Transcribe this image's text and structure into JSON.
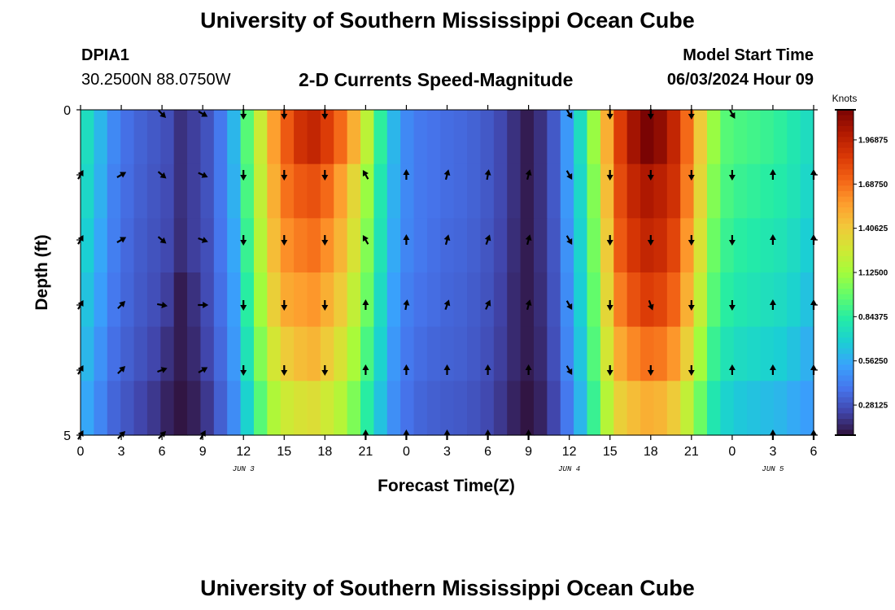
{
  "header": {
    "title": "University of Southern Mississippi Ocean Cube",
    "station": "DPIA1",
    "coords": "30.2500N  88.0750W",
    "subtitle": "2-D Currents Speed-Magnitude",
    "model_start_label": "Model Start Time",
    "model_start_value": "06/03/2024 Hour 09"
  },
  "footer": {
    "title": "University of Southern Mississippi Ocean Cube"
  },
  "colors": {
    "colormap": [
      "#30123b",
      "#4145ab",
      "#4675ed",
      "#39a2fc",
      "#1bcfd4",
      "#24eca6",
      "#61fc6c",
      "#a4fc3b",
      "#d1e834",
      "#f3c63a",
      "#fe9b2d",
      "#f36315",
      "#d93806",
      "#b11901",
      "#7a0403"
    ]
  },
  "chart_data": {
    "type": "heatmap",
    "title": "2-D Currents Speed-Magnitude",
    "xlabel": "Forecast Time(Z)",
    "ylabel": "Depth (ft)",
    "x_hours": [
      0,
      3,
      6,
      9,
      12,
      15,
      18,
      21,
      24,
      27,
      30,
      33,
      36,
      39,
      42,
      45,
      48,
      51,
      54
    ],
    "x_tick_labels": [
      "0",
      "3",
      "6",
      "9",
      "12",
      "15",
      "18",
      "21",
      "0",
      "3",
      "6",
      "9",
      "12",
      "15",
      "18",
      "21",
      "0",
      "3",
      "6"
    ],
    "date_labels": [
      {
        "hour": 12,
        "label": "JUN 3"
      },
      {
        "hour": 36,
        "label": "JUN 4"
      },
      {
        "hour": 51,
        "label": "JUN 5"
      }
    ],
    "y_range": [
      0,
      5
    ],
    "y_tick_labels": [
      "0",
      "5"
    ],
    "depth_levels": [
      0,
      1,
      2,
      3,
      4,
      5
    ],
    "colorbar": {
      "title": "Knots",
      "ticks": [
        0.28125,
        0.5625,
        0.84375,
        1.125,
        1.40625,
        1.6875,
        1.96875
      ],
      "tick_labels": [
        "0.28125",
        "0.56250",
        "0.84375",
        "1.12500",
        "1.40625",
        "1.68750",
        "1.96875"
      ],
      "range": [
        0.09,
        2.16
      ]
    },
    "speed_knots": [
      [
        0.75,
        0.6,
        0.45,
        0.37,
        0.33,
        0.3,
        0.27,
        0.18,
        0.22,
        0.28,
        0.4,
        0.6,
        0.95,
        1.25,
        1.55,
        1.75,
        1.9,
        1.95,
        1.85,
        1.7,
        1.5,
        1.2,
        0.85,
        0.6,
        0.45,
        0.4,
        0.38,
        0.36,
        0.35,
        0.33,
        0.3,
        0.25,
        0.18,
        0.12,
        0.18,
        0.3,
        0.5,
        0.75,
        1.1,
        1.5,
        1.85,
        2.05,
        2.16,
        2.1,
        1.95,
        1.7,
        1.4,
        1.1,
        0.95,
        0.92,
        0.9,
        0.88,
        0.85,
        0.8,
        0.75
      ],
      [
        0.72,
        0.58,
        0.43,
        0.36,
        0.32,
        0.29,
        0.26,
        0.18,
        0.22,
        0.28,
        0.4,
        0.58,
        0.92,
        1.22,
        1.5,
        1.68,
        1.75,
        1.78,
        1.7,
        1.55,
        1.35,
        1.1,
        0.8,
        0.58,
        0.45,
        0.4,
        0.38,
        0.36,
        0.35,
        0.33,
        0.3,
        0.25,
        0.18,
        0.12,
        0.18,
        0.3,
        0.5,
        0.72,
        1.05,
        1.45,
        1.8,
        1.95,
        2.02,
        1.98,
        1.9,
        1.65,
        1.35,
        1.05,
        0.92,
        0.88,
        0.86,
        0.84,
        0.82,
        0.78,
        0.72
      ],
      [
        0.68,
        0.55,
        0.42,
        0.35,
        0.31,
        0.28,
        0.25,
        0.17,
        0.22,
        0.27,
        0.39,
        0.55,
        0.88,
        1.18,
        1.45,
        1.6,
        1.65,
        1.68,
        1.6,
        1.48,
        1.3,
        1.05,
        0.78,
        0.56,
        0.44,
        0.4,
        0.37,
        0.35,
        0.34,
        0.32,
        0.29,
        0.24,
        0.17,
        0.12,
        0.18,
        0.29,
        0.48,
        0.7,
        1.02,
        1.4,
        1.75,
        1.88,
        1.95,
        1.92,
        1.82,
        1.58,
        1.3,
        1.0,
        0.88,
        0.84,
        0.82,
        0.8,
        0.78,
        0.74,
        0.68
      ],
      [
        0.64,
        0.52,
        0.4,
        0.34,
        0.3,
        0.27,
        0.22,
        0.12,
        0.18,
        0.26,
        0.37,
        0.52,
        0.84,
        1.12,
        1.38,
        1.52,
        1.55,
        1.58,
        1.5,
        1.4,
        1.22,
        1.0,
        0.74,
        0.53,
        0.42,
        0.38,
        0.36,
        0.34,
        0.33,
        0.31,
        0.28,
        0.23,
        0.16,
        0.12,
        0.17,
        0.28,
        0.46,
        0.68,
        0.98,
        1.35,
        1.65,
        1.78,
        1.85,
        1.82,
        1.72,
        1.5,
        1.22,
        0.95,
        0.84,
        0.8,
        0.78,
        0.76,
        0.74,
        0.7,
        0.64
      ],
      [
        0.6,
        0.48,
        0.37,
        0.32,
        0.28,
        0.24,
        0.18,
        0.12,
        0.16,
        0.24,
        0.35,
        0.5,
        0.78,
        1.05,
        1.28,
        1.4,
        1.45,
        1.48,
        1.4,
        1.3,
        1.14,
        0.92,
        0.7,
        0.5,
        0.4,
        0.36,
        0.34,
        0.33,
        0.32,
        0.3,
        0.27,
        0.22,
        0.16,
        0.12,
        0.16,
        0.27,
        0.44,
        0.65,
        0.94,
        1.28,
        1.52,
        1.62,
        1.68,
        1.66,
        1.58,
        1.38,
        1.12,
        0.88,
        0.78,
        0.74,
        0.72,
        0.7,
        0.68,
        0.64,
        0.58
      ],
      [
        0.55,
        0.44,
        0.34,
        0.29,
        0.24,
        0.2,
        0.14,
        0.1,
        0.13,
        0.2,
        0.32,
        0.46,
        0.7,
        0.95,
        1.16,
        1.26,
        1.3,
        1.32,
        1.26,
        1.18,
        1.04,
        0.84,
        0.64,
        0.47,
        0.38,
        0.34,
        0.32,
        0.31,
        0.3,
        0.28,
        0.25,
        0.2,
        0.14,
        0.1,
        0.14,
        0.24,
        0.4,
        0.6,
        0.88,
        1.18,
        1.38,
        1.45,
        1.5,
        1.48,
        1.4,
        1.22,
        1.0,
        0.8,
        0.7,
        0.66,
        0.64,
        0.62,
        0.6,
        0.56,
        0.52
      ]
    ],
    "vector_hours": [
      0,
      3,
      6,
      9,
      12,
      15,
      18,
      21,
      24,
      27,
      30,
      33,
      36,
      39,
      42,
      45,
      48,
      51,
      54
    ],
    "vector_depths": [
      0,
      1,
      2,
      3,
      4,
      5
    ],
    "vector_directions_deg": [
      [
        null,
        null,
        135,
        120,
        180,
        180,
        180,
        null,
        null,
        null,
        null,
        null,
        150,
        180,
        180,
        180,
        150,
        null,
        null
      ],
      [
        30,
        60,
        130,
        115,
        180,
        180,
        180,
        330,
        0,
        15,
        10,
        15,
        150,
        180,
        180,
        180,
        180,
        0,
        0
      ],
      [
        30,
        60,
        130,
        110,
        180,
        180,
        180,
        330,
        0,
        15,
        20,
        15,
        150,
        180,
        180,
        180,
        180,
        0,
        0
      ],
      [
        30,
        45,
        100,
        90,
        180,
        180,
        180,
        0,
        10,
        20,
        25,
        15,
        150,
        180,
        160,
        180,
        180,
        0,
        0
      ],
      [
        30,
        45,
        70,
        60,
        180,
        180,
        180,
        0,
        0,
        0,
        0,
        0,
        150,
        180,
        180,
        180,
        0,
        0,
        0
      ],
      [
        30,
        45,
        45,
        30,
        null,
        null,
        null,
        0,
        0,
        0,
        0,
        0,
        null,
        null,
        null,
        null,
        null,
        0,
        0
      ]
    ]
  }
}
